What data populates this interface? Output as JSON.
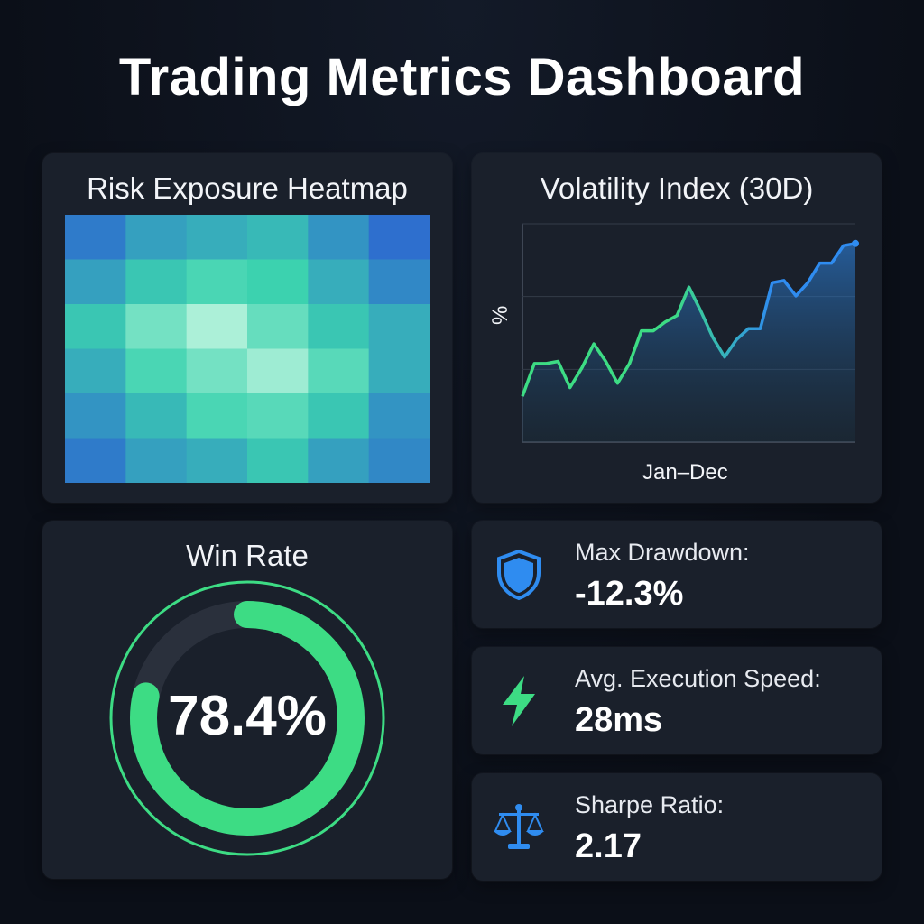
{
  "dashboard": {
    "title": "Trading Metrics Dashboard"
  },
  "heatmap": {
    "title": "Risk Exposure Heatmap",
    "rows": 6,
    "cols": 6,
    "intensity": [
      [
        0.15,
        0.3,
        0.35,
        0.4,
        0.25,
        0.1
      ],
      [
        0.3,
        0.45,
        0.55,
        0.5,
        0.35,
        0.2
      ],
      [
        0.45,
        0.7,
        0.9,
        0.65,
        0.45,
        0.35
      ],
      [
        0.35,
        0.55,
        0.7,
        0.85,
        0.6,
        0.35
      ],
      [
        0.25,
        0.4,
        0.55,
        0.6,
        0.45,
        0.25
      ],
      [
        0.15,
        0.3,
        0.35,
        0.45,
        0.3,
        0.2
      ]
    ],
    "color_low": "#2a56d6",
    "color_high": "#c8f7e2"
  },
  "chart_data": {
    "type": "line",
    "title": "Volatility Index (30D)",
    "xlabel": "Jan–Dec",
    "ylabel": "%",
    "x": [
      0,
      1,
      2,
      3,
      4,
      5,
      6,
      7,
      8,
      9,
      10,
      11,
      12,
      13,
      14,
      15,
      16,
      17,
      18,
      19,
      20,
      21,
      22,
      23,
      24,
      25,
      26,
      27,
      28
    ],
    "series": [
      {
        "values": [
          21,
          36,
          36,
          37,
          25,
          34,
          45,
          37,
          27,
          36,
          51,
          51,
          55,
          58,
          71,
          60,
          48,
          39,
          47,
          52,
          52,
          73,
          74,
          67,
          73,
          82,
          82,
          90,
          91
        ]
      }
    ],
    "ylim": [
      0,
      100
    ],
    "grid": true,
    "color_start": "#3ddc84",
    "color_end": "#2f8cf0"
  },
  "win_rate": {
    "title": "Win Rate",
    "value_text": "78.4%",
    "value": 0.784,
    "color": "#3ddc84"
  },
  "stats": [
    {
      "icon": "shield-icon",
      "label": "Max Drawdown:",
      "value": "-12.3%",
      "color": "#2f8cf0"
    },
    {
      "icon": "lightning-icon",
      "label": "Avg. Execution Speed:",
      "value": "28ms",
      "color": "#3ddc84"
    },
    {
      "icon": "scale-icon",
      "label": "Sharpe Ratio:",
      "value": "2.17",
      "color": "#2f8cf0"
    }
  ]
}
